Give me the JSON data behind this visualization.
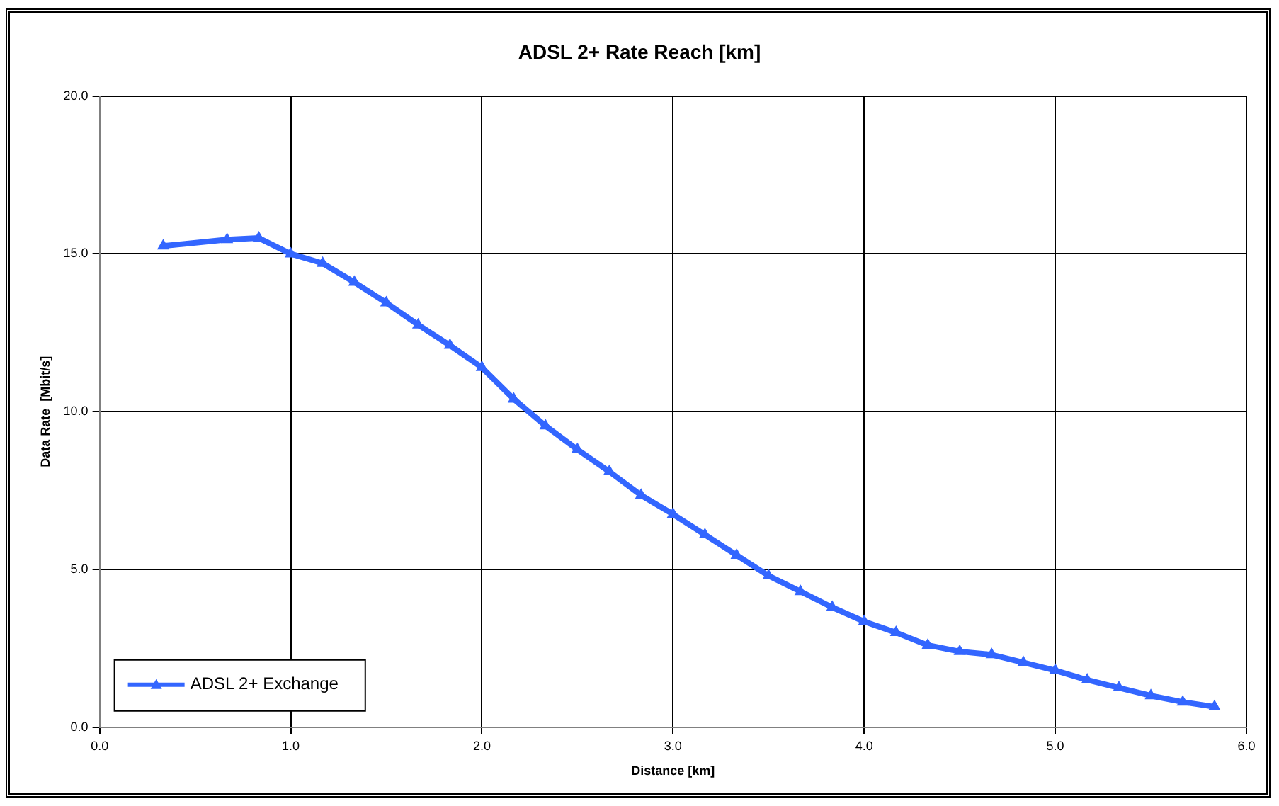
{
  "chart_data": {
    "type": "line",
    "title": "ADSL 2+ Rate Reach [km]",
    "xlabel": "Distance [km]",
    "ylabel": "Data Rate  [Mbit/s]",
    "x": [
      0.333,
      0.667,
      0.833,
      1.0,
      1.167,
      1.333,
      1.5,
      1.667,
      1.833,
      2.0,
      2.167,
      2.333,
      2.5,
      2.667,
      2.833,
      3.0,
      3.167,
      3.333,
      3.5,
      3.667,
      3.833,
      4.0,
      4.167,
      4.333,
      4.5,
      4.667,
      4.833,
      5.0,
      5.167,
      5.333,
      5.5,
      5.667,
      5.833
    ],
    "series": [
      {
        "name": "ADSL 2+ Exchange",
        "color": "#3366ff",
        "values": [
          15.25,
          15.45,
          15.5,
          15.0,
          14.7,
          14.1,
          13.45,
          12.75,
          12.1,
          11.4,
          10.4,
          9.55,
          8.8,
          8.1,
          7.35,
          6.75,
          6.1,
          5.45,
          4.8,
          4.3,
          3.8,
          3.35,
          3.0,
          2.6,
          2.4,
          2.3,
          2.05,
          1.8,
          1.5,
          1.25,
          1.0,
          0.8,
          0.65
        ]
      }
    ],
    "xlim": [
      0,
      6
    ],
    "xticks": [
      {
        "value": 0,
        "label": "0.0"
      },
      {
        "value": 1,
        "label": "1.0"
      },
      {
        "value": 2,
        "label": "2.0"
      },
      {
        "value": 3,
        "label": "3.0"
      },
      {
        "value": 4,
        "label": "4.0"
      },
      {
        "value": 5,
        "label": "5.0"
      },
      {
        "value": 6,
        "label": "6.0"
      }
    ],
    "ylim": [
      0,
      20
    ],
    "yticks": [
      {
        "value": 0,
        "label": "0.0"
      },
      {
        "value": 5,
        "label": "5.0"
      },
      {
        "value": 10,
        "label": "10.0"
      },
      {
        "value": 15,
        "label": "15.0"
      },
      {
        "value": 20,
        "label": "20.0"
      }
    ],
    "grid": true,
    "legend": "bottom left",
    "marker": "triangle",
    "line_style": "solid"
  }
}
